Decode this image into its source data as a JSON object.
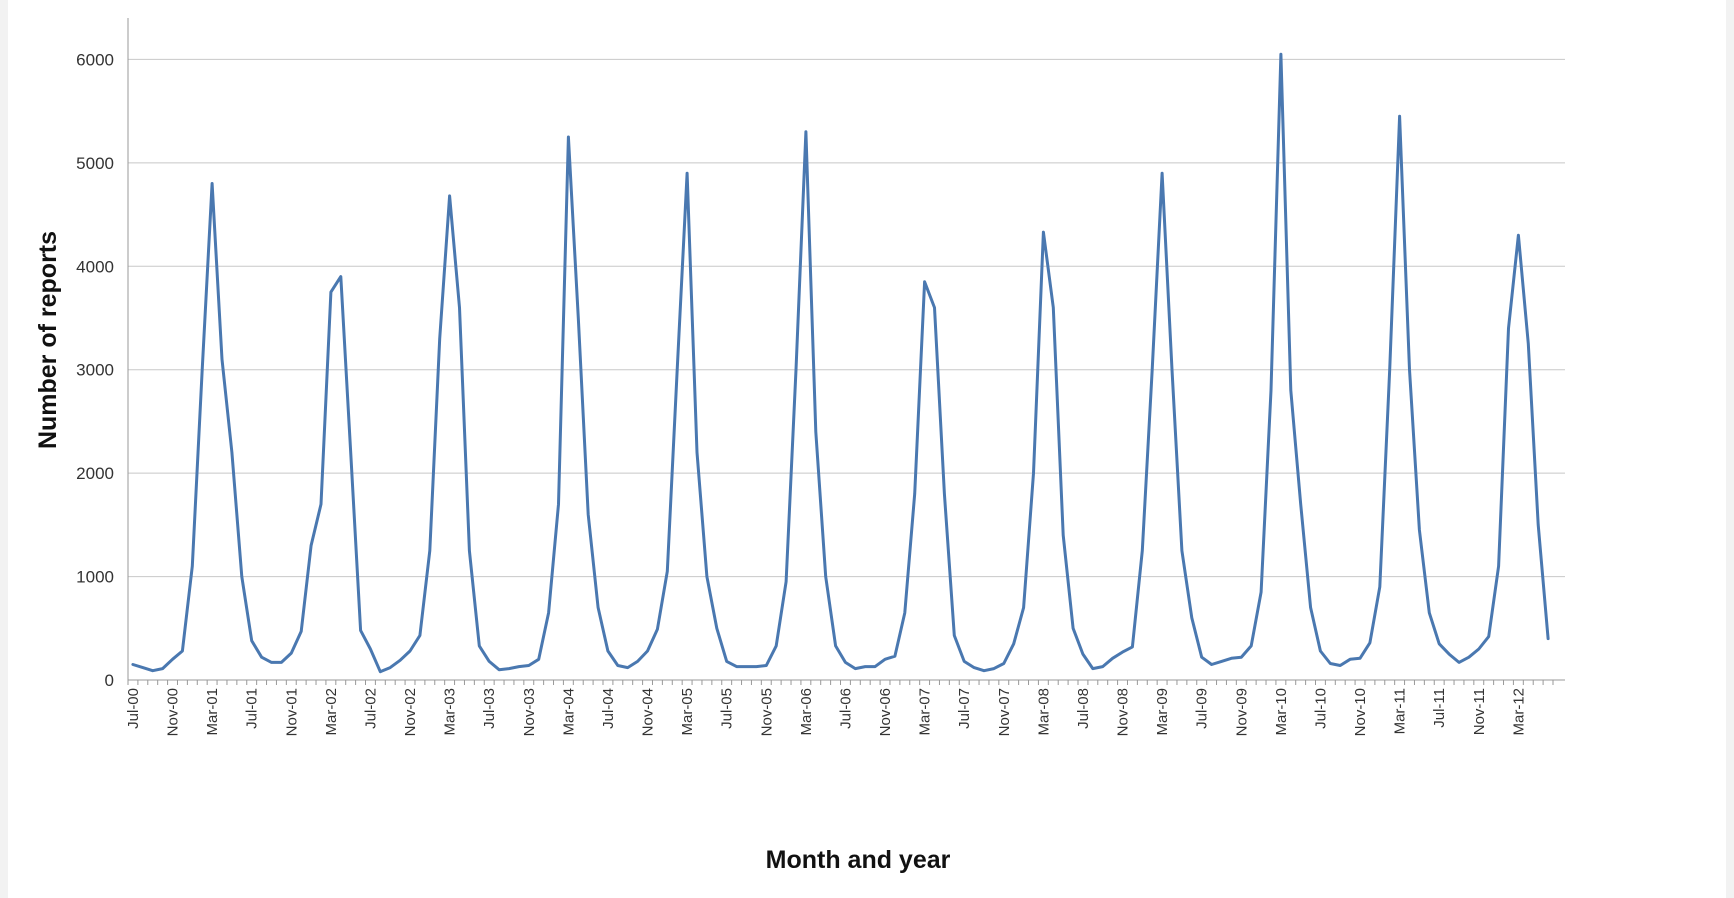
{
  "chart_data": {
    "type": "line",
    "title": "",
    "xlabel": "Month and year",
    "ylabel": "Number of reports",
    "ylim": [
      0,
      6400
    ],
    "yticks": [
      0,
      1000,
      2000,
      3000,
      4000,
      5000,
      6000
    ],
    "grid": true,
    "legend": "none",
    "line_color": "#4a78b0",
    "grid_color": "#c8c8c8",
    "x_start": "2000-07",
    "xtick_labels": [
      "Jul-00",
      "Nov-00",
      "Mar-01",
      "Jul-01",
      "Nov-01",
      "Mar-02",
      "Jul-02",
      "Nov-02",
      "Mar-03",
      "Jul-03",
      "Nov-03",
      "Mar-04",
      "Jul-04",
      "Nov-04",
      "Mar-05",
      "Jul-05",
      "Nov-05",
      "Mar-06",
      "Jul-06",
      "Nov-06",
      "Mar-07",
      "Jul-07",
      "Nov-07",
      "Mar-08",
      "Jul-08",
      "Nov-08",
      "Mar-09",
      "Jul-09",
      "Nov-09",
      "Mar-10",
      "Jul-10",
      "Nov-10",
      "Mar-11",
      "Jul-11",
      "Nov-11",
      "Mar-12"
    ],
    "months": [
      "Jul-00",
      "Aug-00",
      "Sep-00",
      "Oct-00",
      "Nov-00",
      "Dec-00",
      "Jan-01",
      "Feb-01",
      "Mar-01",
      "Apr-01",
      "May-01",
      "Jun-01",
      "Jul-01",
      "Aug-01",
      "Sep-01",
      "Oct-01",
      "Nov-01",
      "Dec-01",
      "Jan-02",
      "Feb-02",
      "Mar-02",
      "Apr-02",
      "May-02",
      "Jun-02",
      "Jul-02",
      "Aug-02",
      "Sep-02",
      "Oct-02",
      "Nov-02",
      "Dec-02",
      "Jan-03",
      "Feb-03",
      "Mar-03",
      "Apr-03",
      "May-03",
      "Jun-03",
      "Jul-03",
      "Aug-03",
      "Sep-03",
      "Oct-03",
      "Nov-03",
      "Dec-03",
      "Jan-04",
      "Feb-04",
      "Mar-04",
      "Apr-04",
      "May-04",
      "Jun-04",
      "Jul-04",
      "Aug-04",
      "Sep-04",
      "Oct-04",
      "Nov-04",
      "Dec-04",
      "Jan-05",
      "Feb-05",
      "Mar-05",
      "Apr-05",
      "May-05",
      "Jun-05",
      "Jul-05",
      "Aug-05",
      "Sep-05",
      "Oct-05",
      "Nov-05",
      "Dec-05",
      "Jan-06",
      "Feb-06",
      "Mar-06",
      "Apr-06",
      "May-06",
      "Jun-06",
      "Jul-06",
      "Aug-06",
      "Sep-06",
      "Oct-06",
      "Nov-06",
      "Dec-06",
      "Jan-07",
      "Feb-07",
      "Mar-07",
      "Apr-07",
      "May-07",
      "Jun-07",
      "Jul-07",
      "Aug-07",
      "Sep-07",
      "Oct-07",
      "Nov-07",
      "Dec-07",
      "Jan-08",
      "Feb-08",
      "Mar-08",
      "Apr-08",
      "May-08",
      "Jun-08",
      "Jul-08",
      "Aug-08",
      "Sep-08",
      "Oct-08",
      "Nov-08",
      "Dec-08",
      "Jan-09",
      "Feb-09",
      "Mar-09",
      "Apr-09",
      "May-09",
      "Jun-09",
      "Jul-09",
      "Aug-09",
      "Sep-09",
      "Oct-09",
      "Nov-09",
      "Dec-09",
      "Jan-10",
      "Feb-10",
      "Mar-10",
      "Apr-10",
      "May-10",
      "Jun-10",
      "Jul-10",
      "Aug-10",
      "Sep-10",
      "Oct-10",
      "Nov-10",
      "Dec-10",
      "Jan-11",
      "Feb-11",
      "Mar-11",
      "Apr-11",
      "May-11",
      "Jun-11",
      "Jul-11",
      "Aug-11",
      "Sep-11",
      "Oct-11",
      "Nov-11",
      "Dec-11",
      "Jan-12",
      "Feb-12",
      "Mar-12",
      "Apr-12",
      "May-12",
      "Jun-12"
    ],
    "values": [
      150,
      120,
      90,
      110,
      200,
      280,
      1100,
      3000,
      4800,
      3100,
      2200,
      1000,
      380,
      220,
      170,
      170,
      260,
      470,
      1300,
      1700,
      3750,
      3900,
      2200,
      480,
      300,
      80,
      120,
      190,
      280,
      430,
      1250,
      3300,
      4680,
      3600,
      1250,
      330,
      180,
      100,
      110,
      130,
      140,
      200,
      650,
      1700,
      5250,
      3500,
      1600,
      700,
      280,
      140,
      120,
      180,
      280,
      490,
      1050,
      3000,
      4900,
      2200,
      1000,
      500,
      180,
      130,
      130,
      130,
      140,
      330,
      950,
      3000,
      5300,
      2400,
      1000,
      330,
      170,
      110,
      130,
      130,
      200,
      230,
      650,
      1800,
      3850,
      3600,
      1800,
      430,
      180,
      120,
      90,
      110,
      160,
      350,
      700,
      2000,
      4330,
      3600,
      1400,
      500,
      250,
      110,
      130,
      210,
      270,
      320,
      1250,
      3000,
      4900,
      3000,
      1250,
      600,
      220,
      150,
      180,
      210,
      220,
      330,
      850,
      2800,
      6050,
      2800,
      1700,
      700,
      280,
      160,
      140,
      200,
      210,
      360,
      900,
      3000,
      5450,
      3000,
      1450,
      650,
      350,
      250,
      170,
      220,
      300,
      420,
      1100,
      3400,
      4300,
      3250,
      1500,
      400
    ]
  }
}
